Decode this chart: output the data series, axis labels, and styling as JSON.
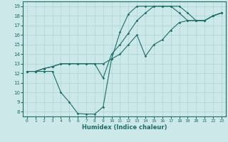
{
  "xlabel": "Humidex (Indice chaleur)",
  "bg_color": "#cce8e8",
  "line_color": "#1a6e6a",
  "grid_color": "#aad4d4",
  "xlim": [
    -0.5,
    23.5
  ],
  "ylim": [
    7.5,
    19.5
  ],
  "xticks": [
    0,
    1,
    2,
    3,
    4,
    5,
    6,
    7,
    8,
    9,
    10,
    11,
    12,
    13,
    14,
    15,
    16,
    17,
    18,
    19,
    20,
    21,
    22,
    23
  ],
  "yticks": [
    8,
    9,
    10,
    11,
    12,
    13,
    14,
    15,
    16,
    17,
    18,
    19
  ],
  "line1_x": [
    0,
    1,
    2,
    3,
    4,
    5,
    6,
    7,
    8,
    9,
    10,
    11,
    12,
    13,
    14,
    15,
    16,
    17,
    18,
    19,
    20,
    21,
    22,
    23
  ],
  "line1_y": [
    12.2,
    12.2,
    12.5,
    12.7,
    13.0,
    13.0,
    13.0,
    13.0,
    13.0,
    11.5,
    14.0,
    15.0,
    16.2,
    17.5,
    18.3,
    19.0,
    19.0,
    19.0,
    19.0,
    18.3,
    17.5,
    17.5,
    18.0,
    18.3
  ],
  "line2_x": [
    0,
    1,
    2,
    3,
    4,
    5,
    6,
    7,
    8,
    9,
    10,
    11,
    12,
    13,
    14,
    15,
    16,
    17,
    18,
    19,
    20,
    21,
    22,
    23
  ],
  "line2_y": [
    12.2,
    12.2,
    12.2,
    12.2,
    10.0,
    9.0,
    7.8,
    7.75,
    7.75,
    8.5,
    13.5,
    16.3,
    18.2,
    19.0,
    19.0,
    19.0,
    19.0,
    19.0,
    18.3,
    17.5,
    17.5,
    17.5,
    18.0,
    18.3
  ],
  "line3_x": [
    0,
    1,
    2,
    3,
    4,
    5,
    6,
    7,
    8,
    9,
    10,
    11,
    12,
    13,
    14,
    15,
    16,
    17,
    18,
    19,
    20,
    21,
    22,
    23
  ],
  "line3_y": [
    12.2,
    12.2,
    12.5,
    12.7,
    13.0,
    13.0,
    13.0,
    13.0,
    13.0,
    13.0,
    13.5,
    14.0,
    15.0,
    16.0,
    13.8,
    15.0,
    15.5,
    16.5,
    17.3,
    17.5,
    17.5,
    17.5,
    18.0,
    18.3
  ]
}
